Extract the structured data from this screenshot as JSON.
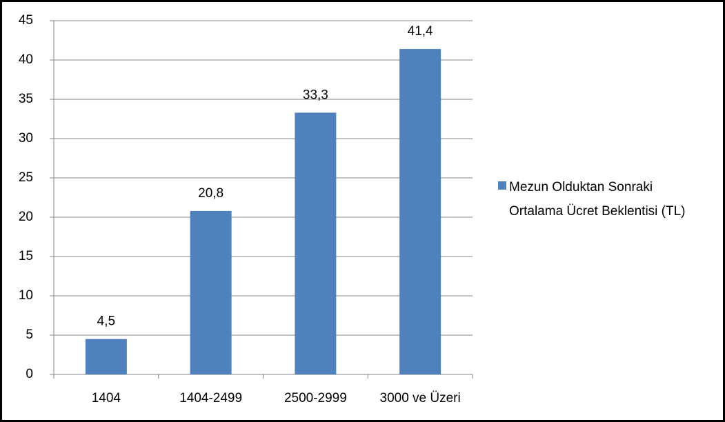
{
  "chart_data": {
    "type": "bar",
    "categories": [
      "1404",
      "1404-2499",
      "2500-2999",
      "3000 ve Üzeri"
    ],
    "series": [
      {
        "name": "Mezun Olduktan Sonraki Ortalama Ücret Beklentisi (TL)",
        "color": "#4f81bd",
        "values": [
          4.5,
          20.8,
          33.3,
          41.4
        ],
        "value_labels": [
          "4,5",
          "20,8",
          "33,3",
          "41,4"
        ]
      }
    ],
    "ylim": [
      0,
      45
    ],
    "yticks": [
      0,
      5,
      10,
      15,
      20,
      25,
      30,
      35,
      40,
      45
    ],
    "grid": true,
    "legend": "right"
  }
}
